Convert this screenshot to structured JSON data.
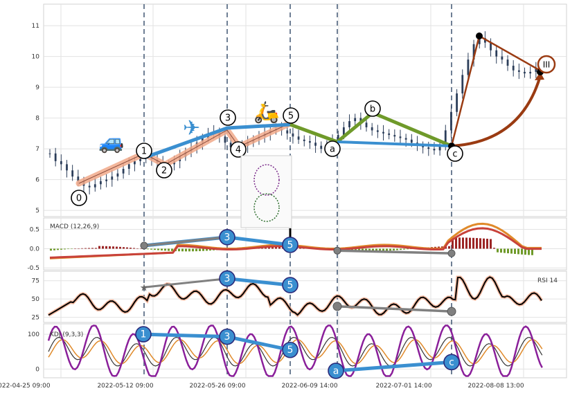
{
  "chart_data": {
    "type": "line",
    "x_ticks": [
      "2022-04-25 09:00",
      "2022-05-12 09:00",
      "2022-05-26 09:00",
      "2022-06-09 14:00",
      "2022-07-01 14:00",
      "2022-08-08 13:00"
    ],
    "price": {
      "y_ticks": [
        5,
        6,
        7,
        8,
        9,
        10,
        11
      ],
      "ylim": [
        4.8,
        11.7
      ],
      "close": [
        6.85,
        6.6,
        6.5,
        6.3,
        6.1,
        5.95,
        5.8,
        5.75,
        5.85,
        5.95,
        6.0,
        6.1,
        6.2,
        6.35,
        6.5,
        6.6,
        6.7,
        6.75,
        6.65,
        6.55,
        6.45,
        6.5,
        6.6,
        6.75,
        6.9,
        7.05,
        7.2,
        7.35,
        7.5,
        7.55,
        7.4,
        7.2,
        7.05,
        7.0,
        7.1,
        7.2,
        7.3,
        7.4,
        7.5,
        7.6,
        7.65,
        7.6,
        7.5,
        7.4,
        7.3,
        7.25,
        7.2,
        7.1,
        7.0,
        7.1,
        7.25,
        7.45,
        7.7,
        7.9,
        8.0,
        7.85,
        7.7,
        7.6,
        7.55,
        7.5,
        7.45,
        7.4,
        7.35,
        7.3,
        7.2,
        7.1,
        7.05,
        7.0,
        6.95,
        7.15,
        7.6,
        8.2,
        8.8,
        9.4,
        9.9,
        10.4,
        10.6,
        10.45,
        10.2,
        10.0,
        9.9,
        9.7,
        9.55,
        9.5,
        9.45,
        9.5,
        9.6,
        9.7
      ],
      "wave_main": {
        "labels": [
          "0",
          "1",
          "2",
          "3",
          "4",
          "5"
        ],
        "values": [
          5.7,
          6.65,
          6.4,
          7.6,
          7.1,
          7.7
        ]
      },
      "wave_corr": {
        "labels": [
          "a",
          "b",
          "c"
        ],
        "values": [
          7.15,
          8.2,
          7.0
        ]
      },
      "wave_iii": {
        "label": "III",
        "values": [
          10.65,
          9.5
        ]
      }
    },
    "macd": {
      "title": "MACD (12,26,9)",
      "y_ticks": [
        -0.5,
        0.0,
        0.5
      ],
      "ylim": [
        -0.55,
        0.8
      ],
      "divergence_points": [
        0.08,
        0.3,
        0.1,
        -0.05,
        -0.12
      ]
    },
    "rsi": {
      "title": "RSI 14",
      "y_ticks": [
        25,
        50,
        75
      ],
      "ylim": [
        18,
        88
      ],
      "divergence_points": [
        66,
        78,
        69,
        40,
        33
      ]
    },
    "kdj": {
      "title": "KDJ (9,3,3)",
      "y_ticks": [
        0,
        100
      ],
      "ylim": [
        -25,
        130
      ],
      "wave_labels": [
        "1",
        "3",
        "5",
        "a",
        "c"
      ],
      "wave_values": [
        100,
        93,
        55,
        -5,
        20
      ]
    },
    "colors": {
      "candle": "#2c3e5a",
      "wave_main": "#3a8fd0",
      "wave_corr": "#6f9a2a",
      "wave_iii": "#9a3b12",
      "salmon": "#f1a98a",
      "macd": "#e08a2a",
      "signal": "#c8423a",
      "hist_pos": "#9b2424",
      "hist_neg": "#6f9a2a",
      "kdj_j": "#8a1f9a",
      "gray_line": "#808080"
    }
  }
}
